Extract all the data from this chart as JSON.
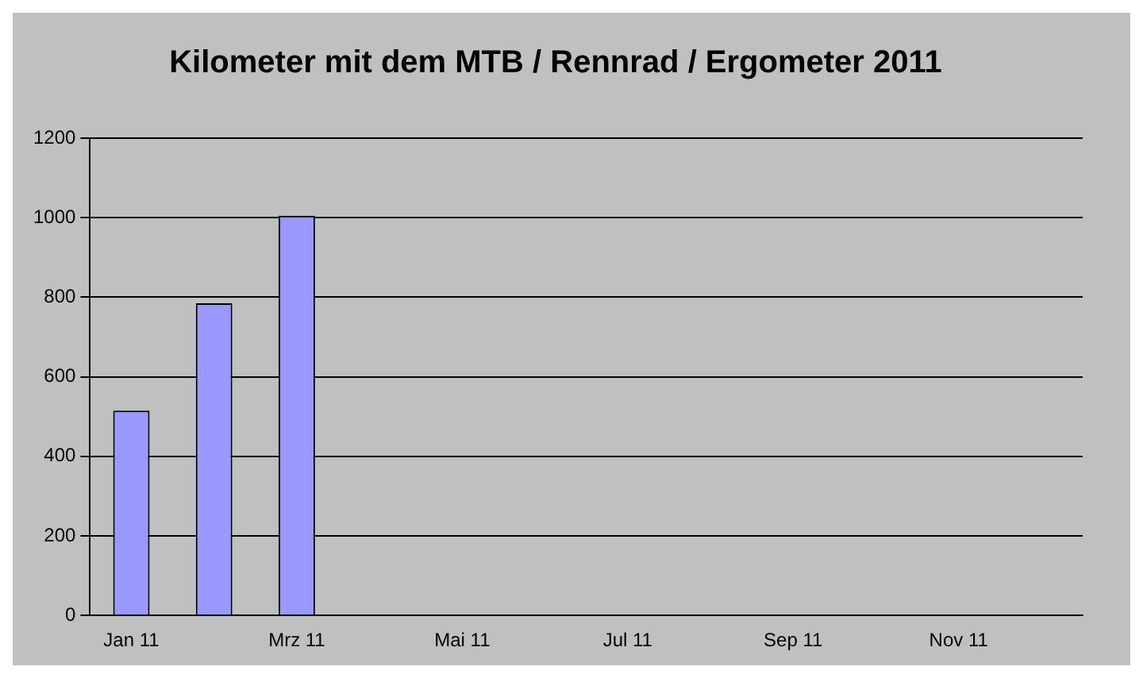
{
  "chart_data": {
    "type": "bar",
    "title": "Kilometer mit dem MTB / Rennrad / Ergometer 2011",
    "categories": [
      "Jan 11",
      null,
      "Mrz 11",
      null,
      "Mai 11",
      null,
      "Jul 11",
      null,
      "Sep 11",
      null,
      "Nov 11",
      null
    ],
    "values": [
      515,
      785,
      1005,
      null,
      null,
      null,
      null,
      null,
      null,
      null,
      null,
      null
    ],
    "color": "#9999ff",
    "ylim": [
      0,
      1200
    ],
    "yticks": [
      0,
      200,
      400,
      600,
      800,
      1000,
      1200
    ],
    "grid": "y",
    "legend": false
  }
}
